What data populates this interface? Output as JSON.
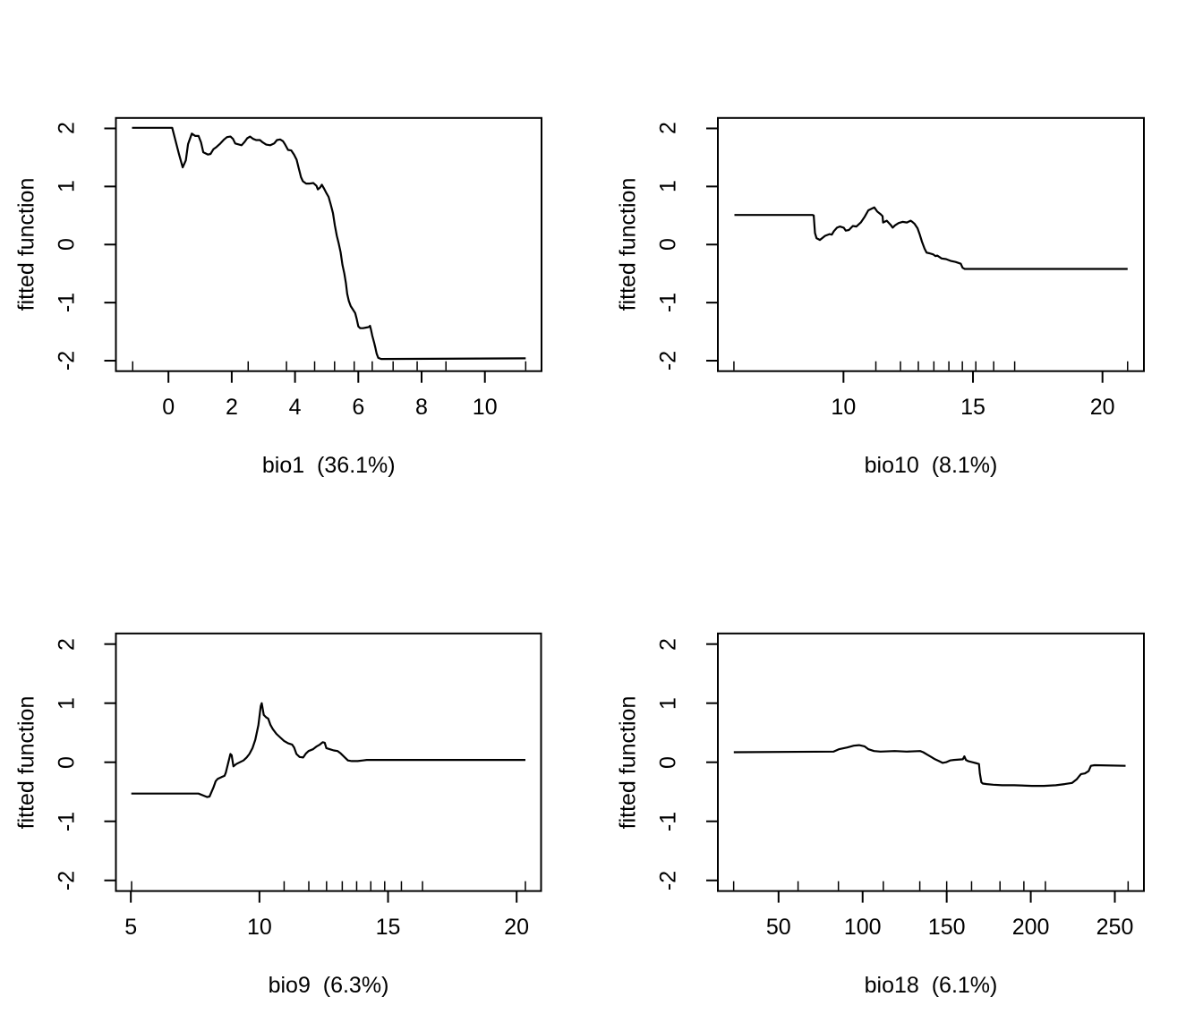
{
  "figure": {
    "background": "#ffffff",
    "line_color": "#000000",
    "text_color": "#000000"
  },
  "chart_data": [
    {
      "type": "line",
      "name": "bio1",
      "xlabel": "bio1  (36.1%)",
      "ylabel": "fitted function",
      "xlim": [
        -1.66,
        11.79
      ],
      "ylim": [
        -2.18,
        2.18
      ],
      "xticks": [
        0,
        2,
        4,
        6,
        8,
        10
      ],
      "yticks": [
        -2,
        -1,
        0,
        1,
        2
      ],
      "grid": false,
      "legend": "none",
      "rug_x": [
        -1.13,
        2.52,
        3.73,
        4.62,
        5.25,
        5.87,
        6.44,
        7.1,
        7.86,
        8.77,
        11.29
      ],
      "points": [
        [
          -1.15,
          2.01
        ],
        [
          0.12,
          2.01
        ],
        [
          0.33,
          1.56
        ],
        [
          0.45,
          1.33
        ],
        [
          0.55,
          1.45
        ],
        [
          0.62,
          1.73
        ],
        [
          0.74,
          1.91
        ],
        [
          0.85,
          1.87
        ],
        [
          0.95,
          1.87
        ],
        [
          1.03,
          1.76
        ],
        [
          1.1,
          1.59
        ],
        [
          1.25,
          1.55
        ],
        [
          1.33,
          1.56
        ],
        [
          1.42,
          1.64
        ],
        [
          1.52,
          1.68
        ],
        [
          1.64,
          1.74
        ],
        [
          1.76,
          1.81
        ],
        [
          1.85,
          1.85
        ],
        [
          1.96,
          1.86
        ],
        [
          2.04,
          1.82
        ],
        [
          2.11,
          1.74
        ],
        [
          2.31,
          1.71
        ],
        [
          2.41,
          1.77
        ],
        [
          2.49,
          1.83
        ],
        [
          2.58,
          1.86
        ],
        [
          2.68,
          1.82
        ],
        [
          2.77,
          1.8
        ],
        [
          2.89,
          1.8
        ],
        [
          2.98,
          1.76
        ],
        [
          3.09,
          1.72
        ],
        [
          3.22,
          1.71
        ],
        [
          3.34,
          1.74
        ],
        [
          3.43,
          1.8
        ],
        [
          3.53,
          1.81
        ],
        [
          3.62,
          1.78
        ],
        [
          3.69,
          1.72
        ],
        [
          3.78,
          1.63
        ],
        [
          3.88,
          1.62
        ],
        [
          3.97,
          1.55
        ],
        [
          4.05,
          1.46
        ],
        [
          4.11,
          1.33
        ],
        [
          4.19,
          1.16
        ],
        [
          4.25,
          1.09
        ],
        [
          4.35,
          1.05
        ],
        [
          4.47,
          1.05
        ],
        [
          4.58,
          1.06
        ],
        [
          4.68,
          1.01
        ],
        [
          4.72,
          0.95
        ],
        [
          4.79,
          0.98
        ],
        [
          4.85,
          1.03
        ],
        [
          4.91,
          0.97
        ],
        [
          4.98,
          0.9
        ],
        [
          5.06,
          0.82
        ],
        [
          5.13,
          0.69
        ],
        [
          5.2,
          0.54
        ],
        [
          5.26,
          0.33
        ],
        [
          5.32,
          0.15
        ],
        [
          5.38,
          0.02
        ],
        [
          5.44,
          -0.13
        ],
        [
          5.5,
          -0.35
        ],
        [
          5.56,
          -0.5
        ],
        [
          5.61,
          -0.67
        ],
        [
          5.65,
          -0.85
        ],
        [
          5.7,
          -0.97
        ],
        [
          5.76,
          -1.06
        ],
        [
          5.83,
          -1.12
        ],
        [
          5.9,
          -1.18
        ],
        [
          5.95,
          -1.28
        ],
        [
          6,
          -1.41
        ],
        [
          6.06,
          -1.44
        ],
        [
          6.15,
          -1.44
        ],
        [
          6.25,
          -1.43
        ],
        [
          6.33,
          -1.42
        ],
        [
          6.37,
          -1.4
        ],
        [
          6.4,
          -1.46
        ],
        [
          6.44,
          -1.57
        ],
        [
          6.5,
          -1.69
        ],
        [
          6.54,
          -1.78
        ],
        [
          6.58,
          -1.88
        ],
        [
          6.63,
          -1.95
        ],
        [
          6.72,
          -1.97
        ],
        [
          11.29,
          -1.96
        ]
      ]
    },
    {
      "type": "line",
      "name": "bio10",
      "xlabel": "bio10  (8.1%)",
      "ylabel": "fitted function",
      "xlim": [
        5.15,
        21.6
      ],
      "ylim": [
        -2.18,
        2.18
      ],
      "xticks": [
        10,
        15,
        20
      ],
      "yticks": [
        -2,
        -1,
        0,
        1,
        2
      ],
      "grid": false,
      "legend": "none",
      "rug_x": [
        5.77,
        11.25,
        12.2,
        12.89,
        13.49,
        14.07,
        14.59,
        15.11,
        15.8,
        16.61,
        20.97
      ],
      "points": [
        [
          5.79,
          0.51
        ],
        [
          8.8,
          0.51
        ],
        [
          8.85,
          0.5
        ],
        [
          8.9,
          0.2
        ],
        [
          8.96,
          0.11
        ],
        [
          9.09,
          0.08
        ],
        [
          9.29,
          0.15
        ],
        [
          9.46,
          0.18
        ],
        [
          9.55,
          0.17
        ],
        [
          9.63,
          0.23
        ],
        [
          9.75,
          0.29
        ],
        [
          9.86,
          0.31
        ],
        [
          10.01,
          0.29
        ],
        [
          10.09,
          0.24
        ],
        [
          10.21,
          0.25
        ],
        [
          10.36,
          0.32
        ],
        [
          10.5,
          0.31
        ],
        [
          10.67,
          0.38
        ],
        [
          10.82,
          0.48
        ],
        [
          10.96,
          0.59
        ],
        [
          11.1,
          0.62
        ],
        [
          11.19,
          0.64
        ],
        [
          11.3,
          0.57
        ],
        [
          11.44,
          0.52
        ],
        [
          11.51,
          0.49
        ],
        [
          11.53,
          0.38
        ],
        [
          11.67,
          0.41
        ],
        [
          11.82,
          0.34
        ],
        [
          11.9,
          0.29
        ],
        [
          11.99,
          0.33
        ],
        [
          12.13,
          0.37
        ],
        [
          12.28,
          0.39
        ],
        [
          12.45,
          0.38
        ],
        [
          12.59,
          0.41
        ],
        [
          12.66,
          0.39
        ],
        [
          12.74,
          0.36
        ],
        [
          12.86,
          0.28
        ],
        [
          12.94,
          0.18
        ],
        [
          13.03,
          0.05
        ],
        [
          13.13,
          -0.07
        ],
        [
          13.21,
          -0.14
        ],
        [
          13.32,
          -0.15
        ],
        [
          13.47,
          -0.17
        ],
        [
          13.55,
          -0.2
        ],
        [
          13.62,
          -0.19
        ],
        [
          13.79,
          -0.24
        ],
        [
          13.96,
          -0.25
        ],
        [
          14.13,
          -0.28
        ],
        [
          14.33,
          -0.3
        ],
        [
          14.53,
          -0.33
        ],
        [
          14.6,
          -0.4
        ],
        [
          14.68,
          -0.42
        ],
        [
          20.97,
          -0.42
        ]
      ]
    },
    {
      "type": "line",
      "name": "bio9",
      "xlabel": "bio9  (6.3%)",
      "ylabel": "fitted function",
      "xlim": [
        4.42,
        20.95
      ],
      "ylim": [
        -2.18,
        2.18
      ],
      "xticks": [
        5,
        10,
        15,
        20
      ],
      "yticks": [
        -2,
        -1,
        0,
        1,
        2
      ],
      "grid": false,
      "legend": "none",
      "rug_x": [
        5.03,
        10.96,
        11.92,
        12.61,
        13.22,
        13.78,
        14.33,
        14.87,
        15.52,
        16.34,
        20.34
      ],
      "points": [
        [
          5.02,
          -0.53
        ],
        [
          7.63,
          -0.53
        ],
        [
          7.97,
          -0.59
        ],
        [
          8.06,
          -0.58
        ],
        [
          8.21,
          -0.43
        ],
        [
          8.3,
          -0.32
        ],
        [
          8.38,
          -0.28
        ],
        [
          8.53,
          -0.25
        ],
        [
          8.64,
          -0.23
        ],
        [
          8.69,
          -0.18
        ],
        [
          8.87,
          0.14
        ],
        [
          8.92,
          0.12
        ],
        [
          8.99,
          -0.07
        ],
        [
          9.1,
          -0.03
        ],
        [
          9.24,
          0
        ],
        [
          9.38,
          0.03
        ],
        [
          9.5,
          0.08
        ],
        [
          9.61,
          0.14
        ],
        [
          9.73,
          0.24
        ],
        [
          9.84,
          0.38
        ],
        [
          9.96,
          0.63
        ],
        [
          10.05,
          0.95
        ],
        [
          10.09,
          1
        ],
        [
          10.17,
          0.8
        ],
        [
          10.26,
          0.76
        ],
        [
          10.34,
          0.74
        ],
        [
          10.43,
          0.63
        ],
        [
          10.52,
          0.56
        ],
        [
          10.66,
          0.48
        ],
        [
          10.81,
          0.42
        ],
        [
          10.96,
          0.36
        ],
        [
          11.12,
          0.32
        ],
        [
          11.27,
          0.3
        ],
        [
          11.35,
          0.25
        ],
        [
          11.44,
          0.14
        ],
        [
          11.56,
          0.09
        ],
        [
          11.7,
          0.08
        ],
        [
          11.81,
          0.15
        ],
        [
          11.91,
          0.19
        ],
        [
          12.08,
          0.22
        ],
        [
          12.23,
          0.27
        ],
        [
          12.35,
          0.3
        ],
        [
          12.46,
          0.34
        ],
        [
          12.54,
          0.33
        ],
        [
          12.6,
          0.24
        ],
        [
          12.74,
          0.22
        ],
        [
          12.89,
          0.2
        ],
        [
          13.04,
          0.19
        ],
        [
          13.16,
          0.15
        ],
        [
          13.3,
          0.09
        ],
        [
          13.44,
          0.03
        ],
        [
          13.59,
          0.02
        ],
        [
          13.82,
          0.02
        ],
        [
          14.02,
          0.03
        ],
        [
          14.17,
          0.04
        ],
        [
          20.34,
          0.04
        ]
      ]
    },
    {
      "type": "line",
      "name": "bio18",
      "xlabel": "bio18  (6.1%)",
      "ylabel": "fitted function",
      "xlim": [
        13.9,
        267.3
      ],
      "ylim": [
        -2.18,
        2.18
      ],
      "xticks": [
        50,
        100,
        150,
        200,
        250
      ],
      "yticks": [
        -2,
        -1,
        0,
        1,
        2
      ],
      "grid": false,
      "legend": "none",
      "rug_x": [
        23.3,
        61.6,
        85.6,
        112.3,
        134,
        150,
        164.8,
        181.7,
        195.9,
        208.7,
        257.9
      ],
      "points": [
        [
          23.4,
          0.17
        ],
        [
          82.8,
          0.18
        ],
        [
          85.8,
          0.22
        ],
        [
          90.8,
          0.25
        ],
        [
          94.7,
          0.28
        ],
        [
          97.9,
          0.29
        ],
        [
          101.1,
          0.27
        ],
        [
          103.5,
          0.22
        ],
        [
          106.8,
          0.19
        ],
        [
          110.6,
          0.18
        ],
        [
          119.1,
          0.19
        ],
        [
          126.2,
          0.18
        ],
        [
          134.2,
          0.19
        ],
        [
          136,
          0.17
        ],
        [
          138.3,
          0.13
        ],
        [
          140.8,
          0.09
        ],
        [
          143.1,
          0.05
        ],
        [
          145.4,
          0.02
        ],
        [
          147.5,
          -0.01
        ],
        [
          149.6,
          0
        ],
        [
          152,
          0.03
        ],
        [
          154.3,
          0.04
        ],
        [
          159.6,
          0.05
        ],
        [
          160.5,
          0.1
        ],
        [
          161.4,
          0.04
        ],
        [
          162.7,
          0.02
        ],
        [
          165.3,
          0
        ],
        [
          168,
          -0.02
        ],
        [
          169.2,
          -0.03
        ],
        [
          169.7,
          -0.19
        ],
        [
          170.6,
          -0.34
        ],
        [
          171.5,
          -0.36
        ],
        [
          173.8,
          -0.37
        ],
        [
          177.7,
          -0.38
        ],
        [
          183,
          -0.39
        ],
        [
          190.1,
          -0.39
        ],
        [
          200.7,
          -0.4
        ],
        [
          207.8,
          -0.4
        ],
        [
          214.9,
          -0.39
        ],
        [
          220.2,
          -0.37
        ],
        [
          224.6,
          -0.35
        ],
        [
          227.3,
          -0.29
        ],
        [
          228.7,
          -0.24
        ],
        [
          229.9,
          -0.2
        ],
        [
          232.2,
          -0.19
        ],
        [
          234.4,
          -0.15
        ],
        [
          235.8,
          -0.06
        ],
        [
          237.9,
          -0.05
        ],
        [
          256.4,
          -0.06
        ]
      ]
    }
  ]
}
